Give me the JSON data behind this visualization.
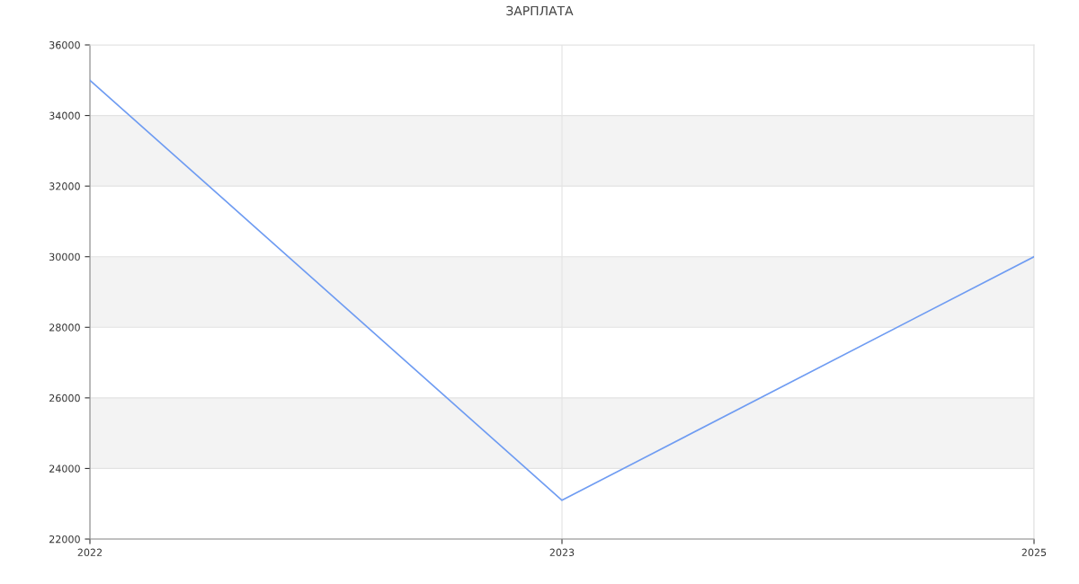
{
  "chart_data": {
    "type": "line",
    "title": "ЗАРПЛАТА",
    "categories": [
      "2022",
      "2023",
      "2025"
    ],
    "series": [
      {
        "color": "#6f9cf2",
        "values": [
          35000,
          23100,
          30000
        ]
      }
    ],
    "ylim": [
      22000,
      36000
    ],
    "yticks": [
      22000,
      24000,
      26000,
      28000,
      30000,
      32000,
      34000,
      36000
    ],
    "bands": [
      {
        "axis": "y",
        "from": 24000,
        "to": 26000,
        "color": "#f3f3f3"
      },
      {
        "axis": "y",
        "from": 28000,
        "to": 30000,
        "color": "#f3f3f3"
      },
      {
        "axis": "y",
        "from": 32000,
        "to": 34000,
        "color": "#f3f3f3"
      }
    ],
    "grid": true,
    "legend": false,
    "marker": "none",
    "line_style": "solid"
  }
}
